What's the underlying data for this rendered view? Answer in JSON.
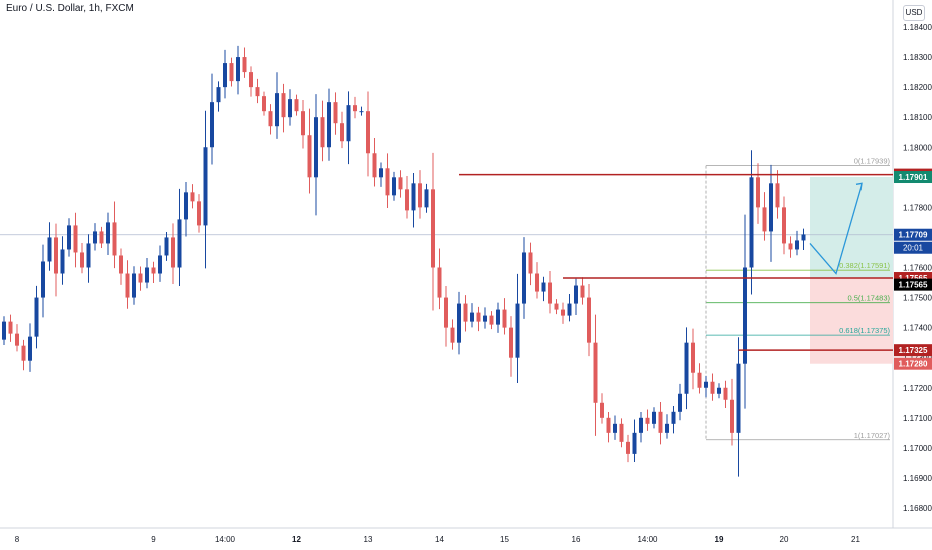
{
  "header": {
    "title": "Euro / U.S. Dollar, 1h, FXCM",
    "currency_button": "USD"
  },
  "colors": {
    "up": "#1848a0",
    "down": "#e05c5c",
    "level_line": "#b22222",
    "tp_zone": "#d4ede9",
    "sl_zone": "#fbdcdc",
    "arrow": "#2b97d9",
    "axis_text": "#131722"
  },
  "chart_data": {
    "type": "candlestick",
    "ylim": [
      1.1675,
      1.1848
    ],
    "y_ticks": [
      "1.16800",
      "1.16900",
      "1.17000",
      "1.17100",
      "1.17200",
      "1.17300",
      "1.17400",
      "1.17500",
      "1.17600",
      "1.17700",
      "1.17800",
      "1.17900",
      "1.18000",
      "1.18100",
      "1.18200",
      "1.18300",
      "1.18400"
    ],
    "x_ticks": [
      {
        "label": "8",
        "bar": 2
      },
      {
        "label": "9",
        "bar": 23
      },
      {
        "label": "14:00",
        "bar": 34
      },
      {
        "label": "12",
        "bar": 45,
        "bold": true
      },
      {
        "label": "13",
        "bar": 56
      },
      {
        "label": "14",
        "bar": 67
      },
      {
        "label": "15",
        "bar": 77
      },
      {
        "label": "16",
        "bar": 88
      },
      {
        "label": "14:00",
        "bar": 99
      },
      {
        "label": "19",
        "bar": 110,
        "bold": true
      },
      {
        "label": "20",
        "bar": 120
      },
      {
        "label": "21",
        "bar": 131
      }
    ],
    "bars": 124,
    "closes": [
      1.1742,
      1.1738,
      1.1734,
      1.1729,
      1.1737,
      1.175,
      1.1762,
      1.177,
      1.1758,
      1.1766,
      1.1774,
      1.1765,
      1.176,
      1.1768,
      1.1772,
      1.1768,
      1.1775,
      1.1764,
      1.1758,
      1.175,
      1.1758,
      1.1755,
      1.176,
      1.1758,
      1.1764,
      1.177,
      1.176,
      1.1776,
      1.1785,
      1.1782,
      1.1774,
      1.18,
      1.1815,
      1.182,
      1.1828,
      1.1822,
      1.183,
      1.1825,
      1.182,
      1.1817,
      1.1812,
      1.1807,
      1.1818,
      1.181,
      1.1816,
      1.1812,
      1.1804,
      1.179,
      1.181,
      1.18,
      1.1815,
      1.1808,
      1.1802,
      1.1814,
      1.1812,
      1.1812,
      1.1798,
      1.179,
      1.1793,
      1.1784,
      1.179,
      1.1786,
      1.1779,
      1.1788,
      1.178,
      1.1786,
      1.176,
      1.175,
      1.174,
      1.1735,
      1.1748,
      1.1742,
      1.1745,
      1.1742,
      1.1744,
      1.1741,
      1.1746,
      1.174,
      1.173,
      1.1748,
      1.1765,
      1.1758,
      1.1752,
      1.1755,
      1.1748,
      1.1746,
      1.1744,
      1.1748,
      1.1754,
      1.175,
      1.1735,
      1.1715,
      1.171,
      1.1705,
      1.1708,
      1.1702,
      1.1698,
      1.1705,
      1.171,
      1.1708,
      1.1712,
      1.1705,
      1.1708,
      1.1712,
      1.1718,
      1.1735,
      1.1725,
      1.172,
      1.1722,
      1.1718,
      1.172,
      1.1716,
      1.1705,
      1.1728,
      1.176,
      1.179,
      1.178,
      1.1772,
      1.1788,
      1.178,
      1.1768,
      1.1766,
      1.1769,
      1.1771
    ],
    "open_first": 1.1736,
    "last_price": "1.17709",
    "countdown": "20:01",
    "levels": [
      {
        "price": 1.17909,
        "label": "1.17909",
        "start_bar": 70
      },
      {
        "price": 1.17565,
        "label": "1.17565",
        "start_bar": 86
      },
      {
        "price": 1.17325,
        "label": "1.17325",
        "start_bar": 113
      }
    ],
    "fibonacci": {
      "start_bar": 108,
      "end_bar": 124,
      "levels": [
        {
          "price": 1.17939,
          "label": "0(1.17939)",
          "color": "#9e9e9e"
        },
        {
          "price": 1.17591,
          "label": "0.382(1.17591)",
          "color": "#8bc34a"
        },
        {
          "price": 1.17483,
          "label": "0.5(1.17483)",
          "color": "#4caf50"
        },
        {
          "price": 1.17375,
          "label": "0.618(1.17375)",
          "color": "#26a69a"
        },
        {
          "price": 1.17027,
          "label": "1(1.17027)",
          "color": "#9e9e9e"
        }
      ]
    },
    "position": {
      "entry": 1.17565,
      "target": 1.17901,
      "stop": 1.1728,
      "start_bar": 124,
      "end_bar": 136
    },
    "projection": [
      {
        "bar": 124,
        "price": 1.1768
      },
      {
        "bar": 128,
        "price": 1.1758
      },
      {
        "bar": 132,
        "price": 1.1788
      }
    ],
    "axis_badges": [
      {
        "label": "1.17909",
        "price": 1.17909,
        "bg": "#b22222"
      },
      {
        "label": "1.17901",
        "price": 1.17901,
        "bg": "#138a70"
      },
      {
        "label": "1.17709",
        "price": 1.17709,
        "bg": "#1848a0"
      },
      {
        "label": "1.17565",
        "price": 1.17565,
        "bg": "#b22222"
      },
      {
        "label": "1.17565",
        "price": 1.17543,
        "bg": "#000000"
      },
      {
        "label": "1.17325",
        "price": 1.17325,
        "bg": "#b22222"
      },
      {
        "label": "1.17280",
        "price": 1.1728,
        "bg": "#e05c5c"
      }
    ]
  }
}
